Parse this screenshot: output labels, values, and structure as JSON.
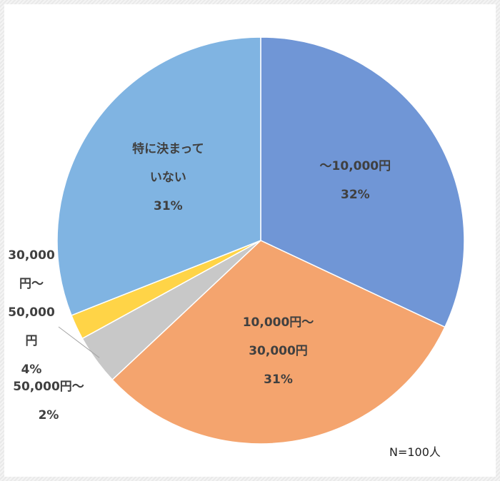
{
  "chart_data": {
    "type": "pie",
    "categories": [
      "～10,000円",
      "10,000円～30,000円",
      "30,000円～50,000円",
      "50,000円～",
      "特に決まっていない"
    ],
    "values": [
      32,
      31,
      4,
      2,
      31
    ],
    "value_labels": [
      "32%",
      "31%",
      "4%",
      "2%",
      "31%"
    ],
    "colors": [
      "#7096d6",
      "#f4a46e",
      "#c8c8c8",
      "#ffd447",
      "#80b4e2"
    ],
    "annotation": "N=100人"
  }
}
